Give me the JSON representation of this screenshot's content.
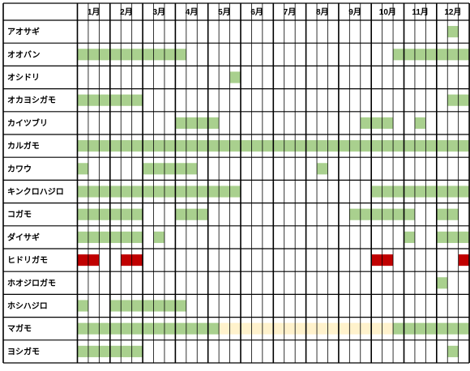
{
  "chart_data": {
    "type": "table",
    "months": [
      "1月",
      "2月",
      "3月",
      "4月",
      "5月",
      "6月",
      "7月",
      "8月",
      "9月",
      "10月",
      "11月",
      "12月"
    ],
    "colors": {
      "present": "#a9d08e",
      "peak": "#c00000",
      "rare": "#fff2cc"
    },
    "rows": [
      {
        "name": "アオサギ",
        "bars": [
          {
            "start": 34,
            "end": 35,
            "status": "present"
          }
        ]
      },
      {
        "name": "オオバン",
        "bars": [
          {
            "start": 0,
            "end": 10,
            "status": "present"
          },
          {
            "start": 29,
            "end": 36,
            "status": "present"
          }
        ]
      },
      {
        "name": "オシドリ",
        "bars": [
          {
            "start": 14,
            "end": 15,
            "status": "present"
          }
        ]
      },
      {
        "name": "オカヨシガモ",
        "bars": [
          {
            "start": 0,
            "end": 6,
            "status": "present"
          },
          {
            "start": 34,
            "end": 36,
            "status": "present"
          }
        ]
      },
      {
        "name": "カイツブリ",
        "bars": [
          {
            "start": 9,
            "end": 13,
            "status": "present"
          },
          {
            "start": 26,
            "end": 29,
            "status": "present"
          },
          {
            "start": 31,
            "end": 32,
            "status": "present"
          }
        ]
      },
      {
        "name": "カルガモ",
        "bars": [
          {
            "start": 0,
            "end": 36,
            "status": "present"
          }
        ]
      },
      {
        "name": "カワウ",
        "bars": [
          {
            "start": 0,
            "end": 1,
            "status": "present"
          },
          {
            "start": 6,
            "end": 11,
            "status": "present"
          },
          {
            "start": 22,
            "end": 23,
            "status": "present"
          }
        ]
      },
      {
        "name": "キンクロハジロ",
        "bars": [
          {
            "start": 0,
            "end": 15,
            "status": "present"
          },
          {
            "start": 27,
            "end": 36,
            "status": "present"
          }
        ]
      },
      {
        "name": "コガモ",
        "bars": [
          {
            "start": 0,
            "end": 6,
            "status": "present"
          },
          {
            "start": 9,
            "end": 12,
            "status": "present"
          },
          {
            "start": 25,
            "end": 31,
            "status": "present"
          },
          {
            "start": 33,
            "end": 35,
            "status": "present"
          }
        ]
      },
      {
        "name": "ダイサギ",
        "bars": [
          {
            "start": 0,
            "end": 6,
            "status": "present"
          },
          {
            "start": 7,
            "end": 8,
            "status": "present"
          },
          {
            "start": 30,
            "end": 31,
            "status": "present"
          },
          {
            "start": 33,
            "end": 36,
            "status": "present"
          }
        ]
      },
      {
        "name": "ヒドリガモ",
        "bars": [
          {
            "start": 0,
            "end": 2,
            "status": "peak"
          },
          {
            "start": 4,
            "end": 6,
            "status": "peak"
          },
          {
            "start": 27,
            "end": 29,
            "status": "peak"
          },
          {
            "start": 35,
            "end": 36,
            "status": "peak"
          }
        ]
      },
      {
        "name": "ホオジロガモ",
        "bars": [
          {
            "start": 33,
            "end": 34,
            "status": "present"
          }
        ]
      },
      {
        "name": "ホシハジロ",
        "bars": [
          {
            "start": 0,
            "end": 1,
            "status": "present"
          },
          {
            "start": 3,
            "end": 10,
            "status": "present"
          }
        ]
      },
      {
        "name": "マガモ",
        "bars": [
          {
            "start": 0,
            "end": 13,
            "status": "present"
          },
          {
            "start": 13,
            "end": 29,
            "status": "rare"
          },
          {
            "start": 29,
            "end": 36,
            "status": "present"
          }
        ]
      },
      {
        "name": "ヨシガモ",
        "bars": [
          {
            "start": 0,
            "end": 6,
            "status": "present"
          },
          {
            "start": 34,
            "end": 35,
            "status": "present"
          }
        ]
      }
    ]
  }
}
